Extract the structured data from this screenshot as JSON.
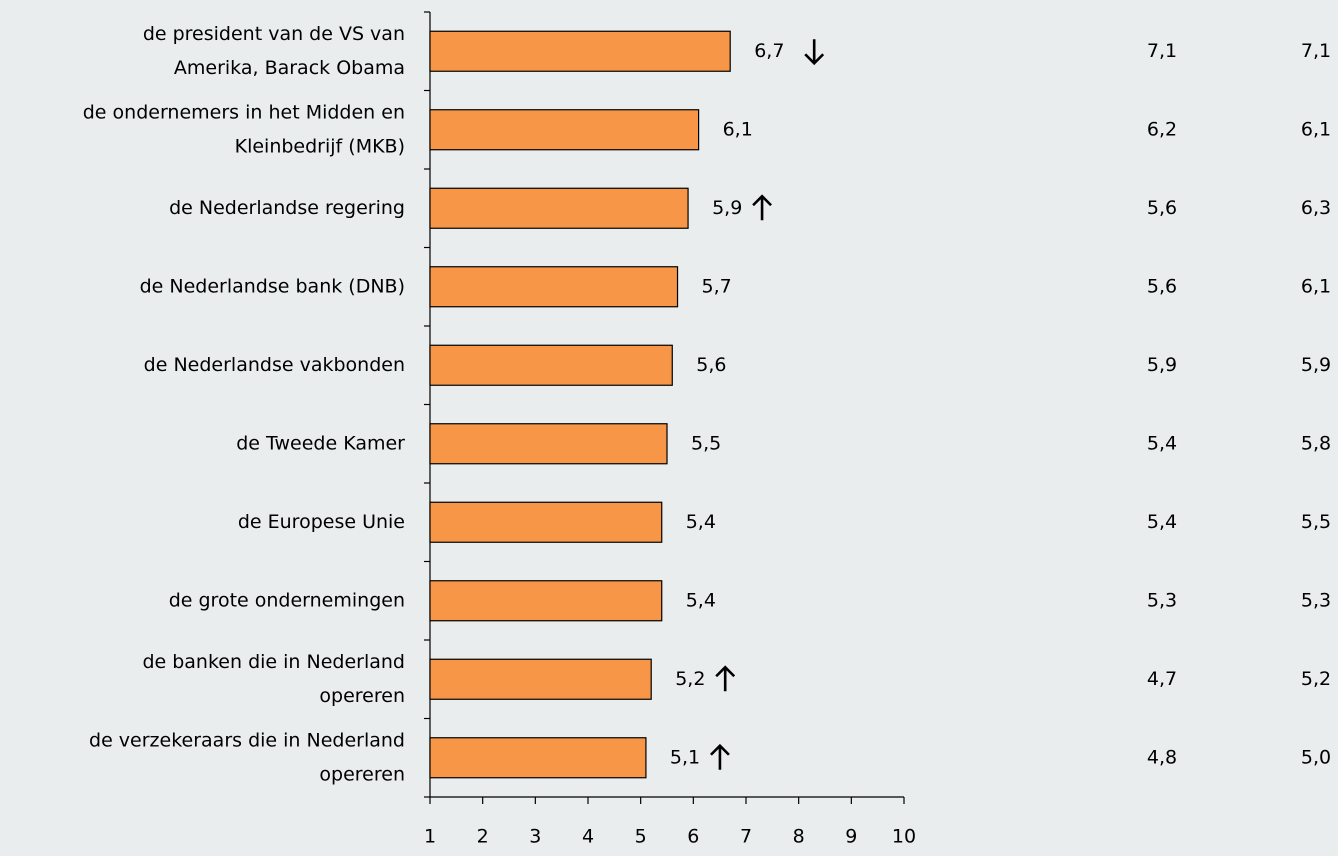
{
  "chart_data": {
    "type": "bar",
    "orientation": "horizontal",
    "categories": [
      [
        "de president van de VS van",
        "Amerika, Barack Obama"
      ],
      [
        "de ondernemers in het Midden en",
        "Kleinbedrijf (MKB)"
      ],
      [
        "de Nederlandse regering"
      ],
      [
        "de Nederlandse bank (DNB)"
      ],
      [
        "de Nederlandse vakbonden"
      ],
      [
        "de Tweede Kamer"
      ],
      [
        "de Europese Unie"
      ],
      [
        "de grote ondernemingen"
      ],
      [
        "de banken die in Nederland",
        "opereren"
      ],
      [
        "de verzekeraars die in Nederland",
        "opereren"
      ]
    ],
    "values": [
      6.7,
      6.1,
      5.9,
      5.7,
      5.6,
      5.5,
      5.4,
      5.4,
      5.2,
      5.1
    ],
    "value_labels": [
      "6,7",
      "6,1",
      "5,9",
      "5,7",
      "5,6",
      "5,5",
      "5,4",
      "5,4",
      "5,2",
      "5,1"
    ],
    "trend": [
      "down",
      null,
      "up",
      null,
      null,
      null,
      null,
      null,
      "up",
      "up"
    ],
    "side_columns": [
      [
        "7,1",
        "6,2",
        "5,6",
        "5,6",
        "5,9",
        "5,4",
        "5,4",
        "5,3",
        "4,7",
        "4,8"
      ],
      [
        "7,1",
        "6,1",
        "6,3",
        "6,1",
        "5,9",
        "5,8",
        "5,5",
        "5,3",
        "5,2",
        "5,0"
      ]
    ],
    "color": "#f79646",
    "xlim": [
      1,
      10
    ],
    "xticks": [
      1,
      2,
      3,
      4,
      5,
      6,
      7,
      8,
      9,
      10
    ],
    "grid": false
  }
}
